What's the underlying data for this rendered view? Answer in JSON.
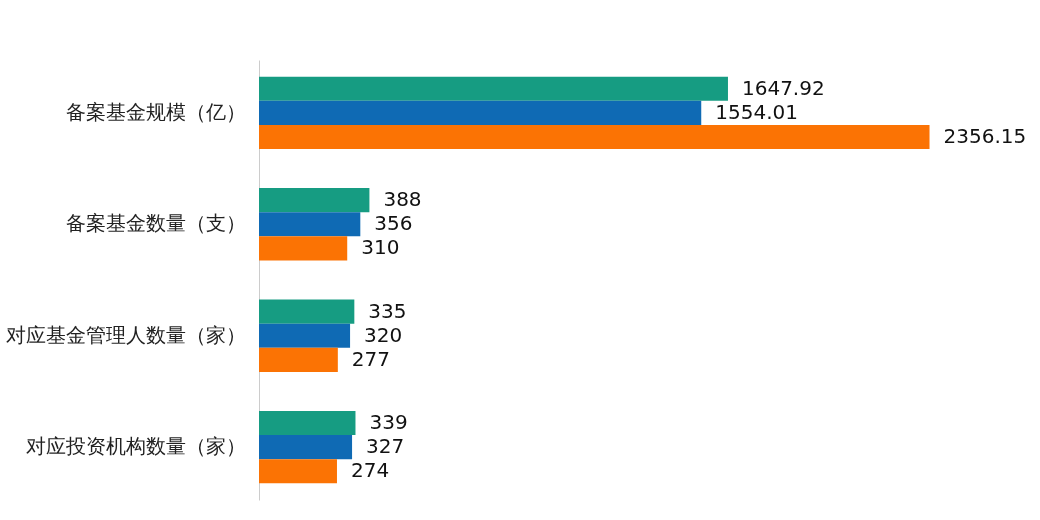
{
  "chart_data": {
    "type": "bar",
    "orientation": "horizontal",
    "categories": [
      "备案基金规模（亿）",
      "备案基金数量（支）",
      "对应基金管理人数量（家）",
      "对应投资机构数量（家）"
    ],
    "series": [
      {
        "color": "#169c82",
        "values": [
          1647.92,
          388,
          335,
          339
        ]
      },
      {
        "color": "#0f6ab4",
        "values": [
          1554.01,
          356,
          320,
          327
        ]
      },
      {
        "color": "#fb7304",
        "values": [
          2356.15,
          310,
          277,
          274
        ]
      }
    ],
    "data_labels": true,
    "legend": false,
    "grid": false
  }
}
